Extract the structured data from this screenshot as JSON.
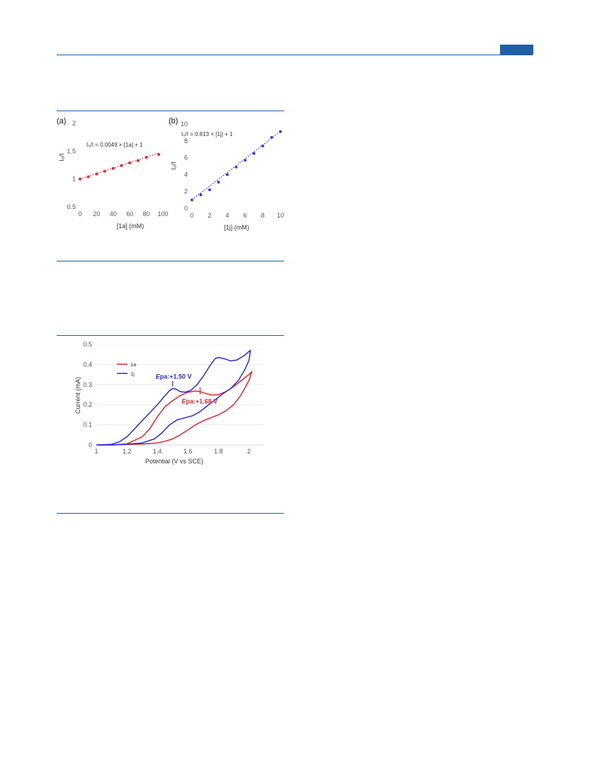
{
  "header": {
    "accent": "#1f5fa6"
  },
  "chart_data": [
    {
      "type": "scatter",
      "panel_label": "(a)",
      "equation": "I₀/I = 0.0049 × [1a] + 1",
      "xlabel": "[1a] (mM)",
      "ylabel": "I₀/I",
      "xlim": [
        0,
        100
      ],
      "ylim": [
        0.5,
        2
      ],
      "xticks": [
        0,
        20,
        40,
        60,
        80,
        100
      ],
      "yticks": [
        0.5,
        1,
        1.5,
        2
      ],
      "ytick_labels": [
        "0.5",
        "1",
        "1.5",
        "2"
      ],
      "color": "#e8262b",
      "trendline": {
        "slope": 0.0049,
        "intercept": 1,
        "style": "dotted"
      },
      "points": [
        {
          "x": 0,
          "y": 1.0
        },
        {
          "x": 10,
          "y": 1.04
        },
        {
          "x": 20,
          "y": 1.09
        },
        {
          "x": 30,
          "y": 1.14
        },
        {
          "x": 40,
          "y": 1.19
        },
        {
          "x": 50,
          "y": 1.24
        },
        {
          "x": 60,
          "y": 1.29
        },
        {
          "x": 70,
          "y": 1.33
        },
        {
          "x": 80,
          "y": 1.39
        },
        {
          "x": 95,
          "y": 1.44
        }
      ]
    },
    {
      "type": "scatter",
      "panel_label": "(b)",
      "equation": "I₀/I = 0.813 × [1j] + 1",
      "xlabel": "[1j] (mM)",
      "ylabel": "I₀/I",
      "xlim": [
        0,
        10
      ],
      "ylim": [
        0,
        10
      ],
      "xticks": [
        0,
        2,
        4,
        6,
        8,
        10
      ],
      "yticks": [
        0,
        2,
        4,
        6,
        8,
        10
      ],
      "ytick_labels": [
        "0",
        "2",
        "4",
        "6",
        "8",
        "10"
      ],
      "color": "#3b3bea",
      "trendline": {
        "slope": 0.813,
        "intercept": 1,
        "style": "dotted"
      },
      "points": [
        {
          "x": 0,
          "y": 1.0
        },
        {
          "x": 1,
          "y": 1.6
        },
        {
          "x": 2,
          "y": 2.2
        },
        {
          "x": 3,
          "y": 3.1
        },
        {
          "x": 4,
          "y": 4.0
        },
        {
          "x": 5,
          "y": 4.9
        },
        {
          "x": 6,
          "y": 5.7
        },
        {
          "x": 7,
          "y": 6.5
        },
        {
          "x": 8,
          "y": 7.4
        },
        {
          "x": 9,
          "y": 8.4
        },
        {
          "x": 10,
          "y": 9.1
        }
      ]
    },
    {
      "type": "line",
      "xlabel": "Potential (V vs SCE)",
      "ylabel": "Current (mA)",
      "xlim": [
        1,
        2.1
      ],
      "ylim": [
        0,
        0.5
      ],
      "xticks": [
        1,
        1.2,
        1.4,
        1.6,
        1.8,
        2
      ],
      "xtick_labels": [
        "1",
        "1.2",
        "1.4",
        "1.6",
        "1.8",
        "2"
      ],
      "yticks": [
        0,
        0.1,
        0.2,
        0.3,
        0.4,
        0.5
      ],
      "ytick_labels": [
        "0",
        "0.1",
        "0.2",
        "0.3",
        "0.4",
        "0.5"
      ],
      "legend_position": "top-left",
      "series": [
        {
          "name": "1a",
          "color": "#e8262b",
          "forward": [
            [
              1.0,
              0.0
            ],
            [
              1.1,
              0.0
            ],
            [
              1.2,
              0.005
            ],
            [
              1.3,
              0.04
            ],
            [
              1.35,
              0.08
            ],
            [
              1.4,
              0.14
            ],
            [
              1.45,
              0.19
            ],
            [
              1.5,
              0.22
            ],
            [
              1.55,
              0.245
            ],
            [
              1.6,
              0.262
            ],
            [
              1.65,
              0.268
            ],
            [
              1.68,
              0.265
            ],
            [
              1.72,
              0.255
            ],
            [
              1.76,
              0.248
            ],
            [
              1.8,
              0.25
            ],
            [
              1.85,
              0.265
            ],
            [
              1.9,
              0.29
            ],
            [
              1.95,
              0.32
            ],
            [
              2.0,
              0.35
            ],
            [
              2.02,
              0.365
            ]
          ],
          "reverse": [
            [
              2.02,
              0.365
            ],
            [
              2.0,
              0.32
            ],
            [
              1.95,
              0.25
            ],
            [
              1.9,
              0.2
            ],
            [
              1.85,
              0.17
            ],
            [
              1.8,
              0.15
            ],
            [
              1.75,
              0.135
            ],
            [
              1.7,
              0.12
            ],
            [
              1.65,
              0.1
            ],
            [
              1.6,
              0.075
            ],
            [
              1.55,
              0.05
            ],
            [
              1.5,
              0.03
            ],
            [
              1.45,
              0.018
            ],
            [
              1.4,
              0.01
            ],
            [
              1.3,
              0.005
            ],
            [
              1.2,
              0.002
            ],
            [
              1.1,
              0.0
            ],
            [
              1.0,
              0.0
            ]
          ]
        },
        {
          "name": "1j",
          "color": "#2b2bde",
          "forward": [
            [
              1.0,
              0.0
            ],
            [
              1.1,
              0.003
            ],
            [
              1.15,
              0.015
            ],
            [
              1.2,
              0.04
            ],
            [
              1.25,
              0.08
            ],
            [
              1.3,
              0.12
            ],
            [
              1.35,
              0.16
            ],
            [
              1.4,
              0.2
            ],
            [
              1.45,
              0.245
            ],
            [
              1.48,
              0.27
            ],
            [
              1.5,
              0.28
            ],
            [
              1.52,
              0.278
            ],
            [
              1.55,
              0.265
            ],
            [
              1.58,
              0.262
            ],
            [
              1.62,
              0.272
            ],
            [
              1.66,
              0.3
            ],
            [
              1.7,
              0.34
            ],
            [
              1.75,
              0.4
            ],
            [
              1.78,
              0.43
            ],
            [
              1.8,
              0.435
            ],
            [
              1.84,
              0.428
            ],
            [
              1.88,
              0.418
            ],
            [
              1.92,
              0.422
            ],
            [
              1.97,
              0.445
            ],
            [
              2.01,
              0.47
            ]
          ],
          "reverse": [
            [
              2.01,
              0.47
            ],
            [
              2.0,
              0.42
            ],
            [
              1.97,
              0.37
            ],
            [
              1.93,
              0.32
            ],
            [
              1.88,
              0.28
            ],
            [
              1.83,
              0.255
            ],
            [
              1.78,
              0.225
            ],
            [
              1.72,
              0.19
            ],
            [
              1.68,
              0.165
            ],
            [
              1.63,
              0.145
            ],
            [
              1.58,
              0.135
            ],
            [
              1.53,
              0.125
            ],
            [
              1.48,
              0.1
            ],
            [
              1.43,
              0.06
            ],
            [
              1.38,
              0.03
            ],
            [
              1.3,
              0.01
            ],
            [
              1.2,
              0.004
            ],
            [
              1.1,
              0.0
            ],
            [
              1.0,
              0.0
            ]
          ]
        }
      ],
      "annotations": [
        {
          "label": "Epa:+1.50 V",
          "italic_prefix": "E",
          "rest": "pa:+1.50 V",
          "color": "#2b2bde",
          "marker_x": 1.5,
          "marker_y": 0.28
        },
        {
          "label": "Epa:+1.68 V",
          "italic_prefix": "E",
          "rest": "pa:+1.68 V",
          "color": "#e8262b",
          "marker_x": 1.68,
          "marker_y": 0.265
        }
      ]
    }
  ]
}
